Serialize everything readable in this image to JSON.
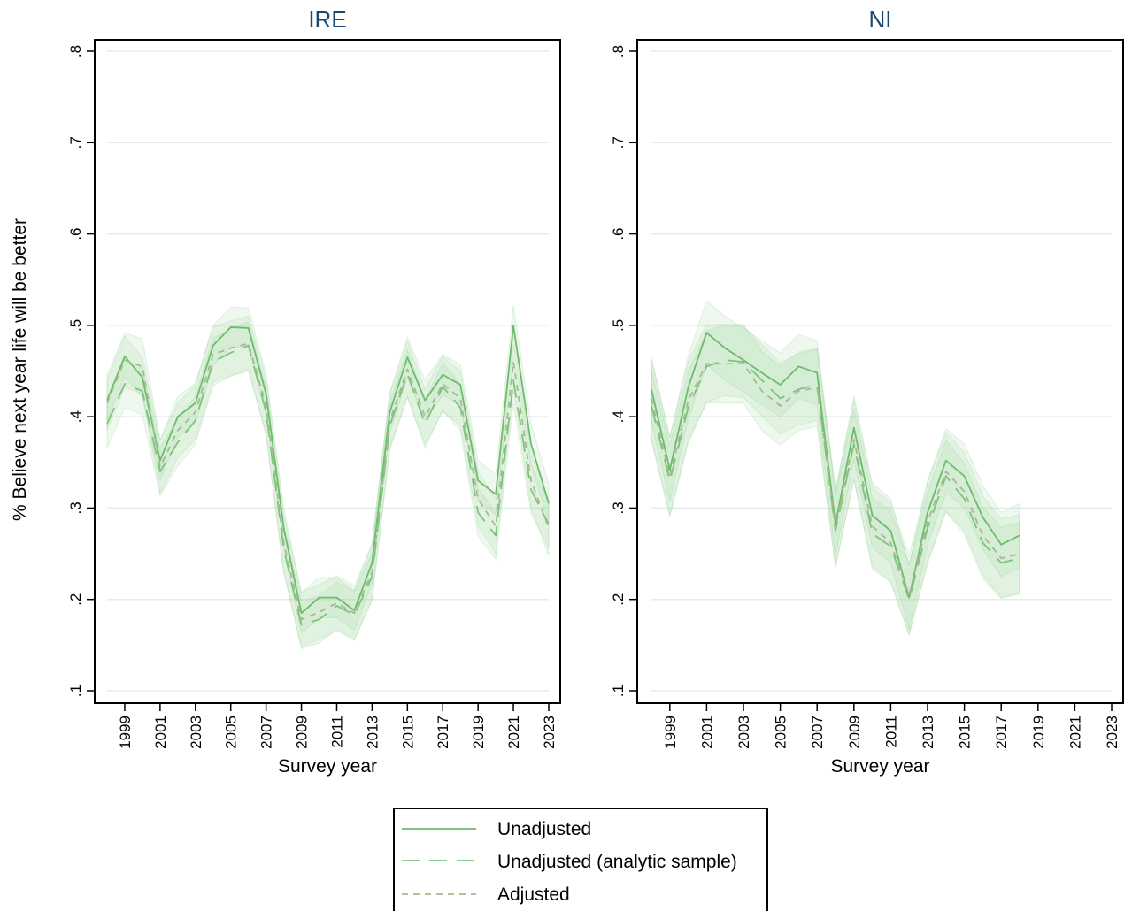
{
  "figure": {
    "y_axis_label": "% Believe next year life will be better",
    "legend": [
      "Unadjusted",
      "Unadjusted (analytic sample)",
      "Adjusted"
    ]
  },
  "colors": {
    "line": "#6cbc6c",
    "line_dashed": "#7cc47c",
    "adjusted": "#a8b890",
    "band": "#8fce8f",
    "gridline": "#e2eee8",
    "title": "#1a476f"
  },
  "chart_data": [
    {
      "type": "line",
      "title": "IRE",
      "xlabel": "Survey year",
      "ylabel": "% Believe next year life will be better",
      "xlim": [
        1998,
        2023
      ],
      "ylim": [
        0.1,
        0.8
      ],
      "yticks": [
        0.1,
        0.2,
        0.3,
        0.4,
        0.5,
        0.6,
        0.7,
        0.8
      ],
      "ytick_labels": [
        ".1",
        ".2",
        ".3",
        ".4",
        ".5",
        ".6",
        ".7",
        ".8"
      ],
      "xticks": [
        1999,
        2001,
        2003,
        2005,
        2007,
        2009,
        2011,
        2013,
        2015,
        2017,
        2019,
        2021,
        2023
      ],
      "xtick_labels": [
        "1999",
        "2001",
        "2003",
        "2005",
        "2007",
        "2009",
        "2011",
        "2013",
        "2015",
        "2017",
        "2019",
        "2021",
        "2023"
      ],
      "grid": true,
      "confidence_bands": true,
      "x": [
        1998,
        1999,
        2000,
        2001,
        2002,
        2003,
        2004,
        2005,
        2006,
        2007,
        2008,
        2009,
        2010,
        2011,
        2012,
        2013,
        2014,
        2015,
        2016,
        2017,
        2018,
        2019,
        2020,
        2021,
        2022,
        2023
      ],
      "series": [
        {
          "name": "Unadjusted",
          "style": "solid",
          "values": [
            0.418,
            0.466,
            0.443,
            0.352,
            0.4,
            0.415,
            0.478,
            0.498,
            0.497,
            0.425,
            0.278,
            0.185,
            0.202,
            0.202,
            0.188,
            0.24,
            0.405,
            0.465,
            0.418,
            0.446,
            0.435,
            0.33,
            0.315,
            0.5,
            0.37,
            0.305
          ]
        },
        {
          "name": "Unadjusted (analytic sample)",
          "style": "longdash",
          "values": [
            0.392,
            0.436,
            0.428,
            0.34,
            0.372,
            0.396,
            0.46,
            0.47,
            0.478,
            0.405,
            0.255,
            0.172,
            0.178,
            0.193,
            0.183,
            0.225,
            0.39,
            0.447,
            0.392,
            0.433,
            0.41,
            0.295,
            0.27,
            0.44,
            0.32,
            0.282
          ]
        },
        {
          "name": "Adjusted",
          "style": "shortdash",
          "values": [
            0.415,
            0.462,
            0.455,
            0.345,
            0.385,
            0.405,
            0.468,
            0.475,
            0.48,
            0.412,
            0.262,
            0.178,
            0.186,
            0.196,
            0.185,
            0.23,
            0.395,
            0.452,
            0.4,
            0.436,
            0.42,
            0.31,
            0.28,
            0.46,
            0.33,
            0.278
          ]
        }
      ]
    },
    {
      "type": "line",
      "title": "NI",
      "xlabel": "Survey year",
      "ylabel": "% Believe next year life will be better",
      "xlim": [
        1998,
        2023
      ],
      "ylim": [
        0.1,
        0.8
      ],
      "yticks": [
        0.1,
        0.2,
        0.3,
        0.4,
        0.5,
        0.6,
        0.7,
        0.8
      ],
      "ytick_labels": [
        ".1",
        ".2",
        ".3",
        ".4",
        ".5",
        ".6",
        ".7",
        ".8"
      ],
      "xticks": [
        1999,
        2001,
        2003,
        2005,
        2007,
        2009,
        2011,
        2013,
        2015,
        2017,
        2019,
        2021,
        2023
      ],
      "xtick_labels": [
        "1999",
        "2001",
        "2003",
        "2005",
        "2007",
        "2009",
        "2011",
        "2013",
        "2015",
        "2017",
        "2019",
        "2021",
        "2023"
      ],
      "grid": true,
      "confidence_bands": true,
      "x": [
        1998,
        1999,
        2000,
        2001,
        2002,
        2003,
        2004,
        2005,
        2006,
        2007,
        2008,
        2009,
        2010,
        2011,
        2012,
        2013,
        2014,
        2015,
        2016,
        2017,
        2018
      ],
      "series": [
        {
          "name": "Unadjusted",
          "style": "solid",
          "values": [
            0.43,
            0.342,
            0.432,
            0.492,
            0.475,
            0.462,
            0.448,
            0.435,
            0.455,
            0.448,
            0.282,
            0.388,
            0.292,
            0.275,
            0.202,
            0.295,
            0.352,
            0.335,
            0.29,
            0.26,
            0.27
          ]
        },
        {
          "name": "Unadjusted (analytic sample)",
          "style": "longdash",
          "values": [
            0.412,
            0.33,
            0.41,
            0.455,
            0.462,
            0.46,
            0.44,
            0.42,
            0.43,
            0.435,
            0.275,
            0.37,
            0.272,
            0.258,
            0.2,
            0.278,
            0.335,
            0.31,
            0.262,
            0.24,
            0.245
          ]
        },
        {
          "name": "Adjusted",
          "style": "shortdash",
          "values": [
            0.42,
            0.335,
            0.418,
            0.458,
            0.458,
            0.458,
            0.428,
            0.412,
            0.428,
            0.432,
            0.278,
            0.375,
            0.28,
            0.262,
            0.205,
            0.285,
            0.34,
            0.318,
            0.27,
            0.245,
            0.25
          ]
        }
      ]
    }
  ]
}
